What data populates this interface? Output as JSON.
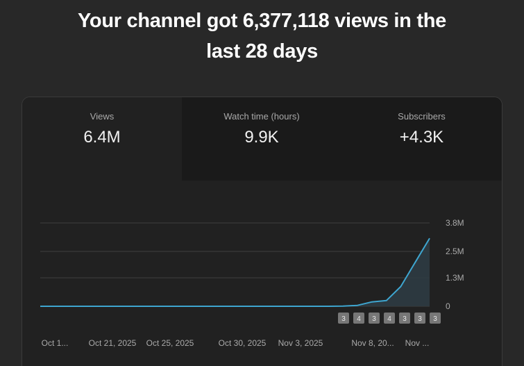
{
  "headline": {
    "line1": "Your channel got 6,377,118 views in the",
    "line2": "last 28 days"
  },
  "tabs": [
    {
      "label": "Views",
      "value": "6.4M",
      "active": true
    },
    {
      "label": "Watch time (hours)",
      "value": "9.9K",
      "active": false
    },
    {
      "label": "Subscribers",
      "value": "+4.3K",
      "active": false
    }
  ],
  "colors": {
    "line": "#3ea6d0",
    "area": "#2d3b42",
    "grid": "#3f3f3f",
    "marker_bg": "#777777"
  },
  "chart_data": {
    "type": "area",
    "y_ticks": [
      "3.8M",
      "2.5M",
      "1.3M",
      "0"
    ],
    "y_tick_values": [
      3800000,
      2500000,
      1300000,
      0
    ],
    "ylim": [
      0,
      3800000
    ],
    "x_tick_labels": [
      "Oct 1...",
      "Oct 21, 2025",
      "Oct 25, 2025",
      "Oct 30, 2025",
      "Nov 3, 2025",
      "Nov 8, 20...",
      "Nov ..."
    ],
    "x_tick_days": [
      0,
      4,
      8,
      13,
      17,
      22,
      26
    ],
    "markers": [
      "3",
      "4",
      "3",
      "4",
      "3",
      "3",
      "3"
    ],
    "marker_days": [
      21,
      22,
      23,
      24,
      25,
      26,
      27
    ],
    "series": [
      {
        "days": [
          0,
          20,
          21,
          22,
          23,
          24,
          25,
          26,
          27
        ],
        "values": [
          0,
          0,
          5000,
          40000,
          200000,
          260000,
          900000,
          2000000,
          3100000
        ]
      }
    ]
  }
}
